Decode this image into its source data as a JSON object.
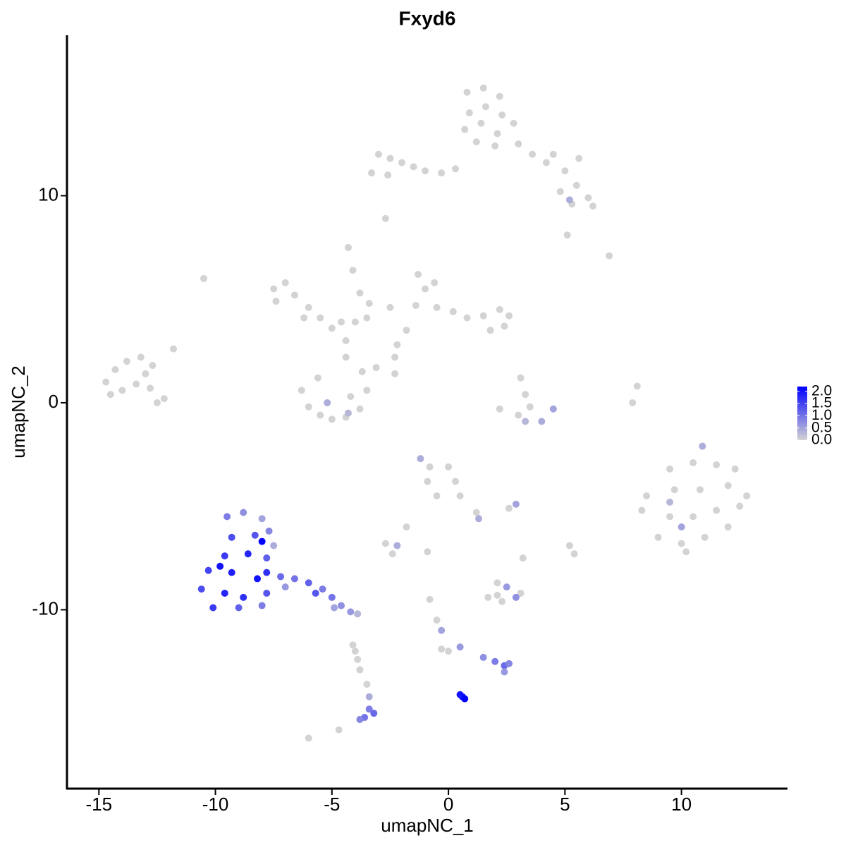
{
  "chart_data": {
    "type": "scatter",
    "title": "Fxyd6",
    "x_label": "umapNC_1",
    "y_label": "umapNC_2",
    "xlim": [
      -16.37,
      14.55
    ],
    "ylim": [
      -18.64,
      17.75
    ],
    "xticks": [
      -15,
      -10,
      -5,
      0,
      5,
      10
    ],
    "yticks": [
      -10,
      0,
      10
    ],
    "colorlim": [
      0,
      2.2
    ],
    "colorbar_ticks": [
      {
        "value": 0,
        "label": "0.0"
      },
      0.5,
      {
        "value": 1,
        "label": "1.0"
      },
      1.5,
      {
        "value": 2,
        "label": "2.0"
      }
    ],
    "colors": {
      "low": "#d3d3d3",
      "high": "#0000ff"
    },
    "x": [
      0.8,
      1.5,
      2.2,
      0.9,
      1.6,
      2.3,
      0.7,
      1.4,
      2.1,
      2.8,
      1.2,
      2,
      3,
      3.6,
      4.2,
      5,
      5.5,
      6,
      5.3,
      4.8,
      5.6,
      4.5,
      6.2,
      5.2,
      -3,
      -2.5,
      -2,
      -1.5,
      -1,
      -0.3,
      0.3,
      -3.3,
      -2.6,
      -2.7,
      6.9,
      5.1,
      -7.5,
      -7,
      -7.4,
      -6.6,
      -6,
      -5.5,
      -5,
      -4.6,
      -4,
      -3.5,
      -6.2,
      -4.3,
      -4.1,
      -3.8,
      -3.4,
      -4.4,
      -4.4,
      -1.3,
      -1,
      -0.6,
      -1.4,
      -0.5,
      0.2,
      0.8,
      1.5,
      2.2,
      2.6,
      2.4,
      1.8,
      -1.8,
      -2.2,
      -2.3,
      -2.5,
      -6.3,
      -6,
      -5.5,
      -5,
      -4.4,
      -3.8,
      -3.5,
      -3.7,
      -4.2,
      -5.6,
      -3.1,
      -2.3,
      -5.2,
      -4.3,
      -14.7,
      -14.3,
      -13.8,
      -13.2,
      -12.7,
      -14,
      -13.4,
      -12.8,
      -12.2,
      -14.5,
      -13,
      -11.8,
      -12.5,
      -10.5,
      3.1,
      3.3,
      3.5,
      2.2,
      3,
      8.1,
      7.9,
      4.5,
      4,
      3.3,
      9,
      10,
      11,
      12,
      9.5,
      10.5,
      11.5,
      12.5,
      8.5,
      9.7,
      10.8,
      12,
      9.5,
      10.5,
      11.5,
      12.3,
      8.3,
      10.2,
      12.8,
      10.9,
      9.5,
      10,
      -0.8,
      0,
      -0.9,
      0.3,
      -0.5,
      0.5,
      1.2,
      2.6,
      -1.2,
      1.3,
      2.9,
      -2.7,
      -2.4,
      -1.8,
      -0.9,
      5.2,
      5.4,
      3.2,
      -2.2,
      1.7,
      2.1,
      2.3,
      3.1,
      2.1,
      2.5,
      2.9,
      -0.8,
      -0.5,
      0,
      -0.3,
      -0.3,
      0.5,
      1.5,
      2,
      2.4,
      2.6,
      2.4,
      0.6,
      0.7,
      0.5,
      -3.5,
      -3.4,
      -3.4,
      -3.6,
      -3.2,
      -3.8,
      -3.9,
      -3.8,
      -6,
      -4.7,
      -4.1,
      -4,
      -9.5,
      -8.8,
      -8,
      -9.3,
      -8.3,
      -7.7,
      -9.6,
      -8.6,
      -7.8,
      -10.3,
      -9.3,
      -8.2,
      -7.2,
      -10.6,
      -9.6,
      -8.8,
      -7.8,
      -10.1,
      -9,
      -8,
      -7,
      -7.5,
      -9.8,
      -8,
      -7.8,
      -6.6,
      -6,
      -5.4,
      -5,
      -4.6,
      -4.2,
      -3.9,
      -5.7,
      -4.9
    ],
    "y": [
      15,
      15.2,
      14.8,
      14,
      14.3,
      13.9,
      13.2,
      13.5,
      13,
      13.5,
      12.6,
      12.4,
      12.5,
      12,
      11.6,
      11.2,
      10.5,
      9.9,
      9.6,
      10.2,
      11.8,
      12,
      9.5,
      9.8,
      12,
      11.8,
      11.6,
      11.4,
      11.2,
      11.1,
      11.3,
      11.1,
      11,
      8.9,
      7.1,
      8.1,
      5.5,
      5.8,
      4.9,
      5.2,
      4.6,
      4.1,
      3.6,
      3.9,
      3.9,
      4.1,
      4.1,
      7.5,
      6.4,
      5.3,
      4.8,
      3,
      2.2,
      6.2,
      5.5,
      5.8,
      4.7,
      4.6,
      4.4,
      4.1,
      4.2,
      4.5,
      4.2,
      3.7,
      3.5,
      3.5,
      2.8,
      2.2,
      4.6,
      0.6,
      -0.2,
      -0.6,
      -0.8,
      -0.7,
      -0.3,
      0.6,
      1.5,
      0.3,
      1.2,
      1.7,
      1.4,
      0,
      -0.5,
      1,
      1.6,
      2,
      2.2,
      1.8,
      0.6,
      0.9,
      0.7,
      0.2,
      0.4,
      1.4,
      2.6,
      0,
      6,
      1.2,
      0.4,
      -0.2,
      -0.3,
      -0.6,
      0.8,
      0,
      -0.3,
      -0.9,
      -0.9,
      -6.5,
      -6.8,
      -6.5,
      -6,
      -5.5,
      -5.5,
      -5.2,
      -5,
      -4.5,
      -4.2,
      -4.2,
      -4,
      -3.2,
      -2.9,
      -3,
      -3.2,
      -5.2,
      -7.2,
      -4.5,
      -2.1,
      -4.8,
      -6,
      -3.1,
      -3.1,
      -3.8,
      -3.8,
      -4.5,
      -4.5,
      -5.3,
      -5.1,
      -2.7,
      -5.6,
      -4.9,
      -6.8,
      -7.3,
      -6,
      -7.2,
      -6.9,
      -7.3,
      -7.5,
      -6.9,
      -9.4,
      -9.3,
      -9.6,
      -9.2,
      -8.7,
      -8.9,
      -9.4,
      -9.5,
      -10.5,
      -12,
      -11.9,
      -11,
      -11.8,
      -12.3,
      -12.5,
      -12.7,
      -12.6,
      -13,
      -14.2,
      -14.3,
      -14.1,
      -13.6,
      -14.2,
      -14.8,
      -15.2,
      -15,
      -15.3,
      -12.4,
      -12.9,
      -16.2,
      -15.8,
      -11.7,
      -12,
      -5.5,
      -5.3,
      -5.6,
      -6.5,
      -6.4,
      -6.2,
      -7.4,
      -7.3,
      -7.5,
      -8.1,
      -8.2,
      -8.5,
      -8.4,
      -9,
      -9.2,
      -9.4,
      -9.2,
      -9.9,
      -9.9,
      -9.8,
      -8.9,
      -6.9,
      -7.9,
      -6.7,
      -8.2,
      -8.5,
      -8.7,
      -9,
      -9.4,
      -9.8,
      -10.1,
      -10.2,
      -9.2,
      -9.9
    ],
    "values": [
      0,
      0,
      0,
      0,
      0,
      0,
      0,
      0,
      0,
      0,
      0,
      0,
      0,
      0,
      0,
      0,
      0,
      0,
      0,
      0,
      0,
      0,
      0,
      0.4,
      0,
      0,
      0,
      0,
      0,
      0,
      0,
      0,
      0,
      0,
      0,
      0,
      0,
      0,
      0,
      0,
      0,
      0,
      0,
      0,
      0,
      0,
      0,
      0,
      0,
      0,
      0,
      0,
      0,
      0,
      0,
      0,
      0,
      0,
      0,
      0,
      0,
      0,
      0,
      0,
      0,
      0,
      0,
      0,
      0,
      0,
      0,
      0,
      0,
      0,
      0,
      0,
      0,
      0,
      0,
      0,
      0,
      0.4,
      0.3,
      0,
      0,
      0,
      0,
      0,
      0,
      0,
      0,
      0,
      0,
      0,
      0,
      0,
      0,
      0,
      0,
      0,
      0,
      0,
      0,
      0,
      0.5,
      0.4,
      0.3,
      0,
      0,
      0,
      0,
      0,
      0,
      0,
      0,
      0,
      0,
      0,
      0,
      0,
      0,
      0,
      0,
      0,
      0,
      0,
      0.4,
      0.3,
      0.5,
      0,
      0,
      0,
      0,
      0,
      0,
      0,
      0,
      0.4,
      0.4,
      0.5,
      0,
      0,
      0,
      0,
      0,
      0,
      0,
      0.4,
      0,
      0,
      0,
      0,
      0,
      0.6,
      0.7,
      0,
      0,
      0,
      0,
      0.5,
      0.6,
      0.7,
      0.9,
      1.1,
      0.8,
      0.6,
      2.1,
      2.2,
      2,
      0,
      0.4,
      0.9,
      1,
      1.1,
      0.8,
      0,
      0,
      0,
      0,
      0,
      0,
      0.9,
      0.7,
      0.5,
      1.4,
      1.3,
      0.8,
      1.6,
      1.8,
      1.2,
      1.5,
      1.9,
      2,
      1.1,
      1.4,
      1.8,
      1.7,
      1.3,
      1.6,
      1.2,
      0.9,
      0.6,
      0.4,
      2,
      2.2,
      1.7,
      1,
      1.2,
      0.9,
      1,
      0.7,
      0.6,
      0.3,
      1.3,
      0.5
    ]
  }
}
